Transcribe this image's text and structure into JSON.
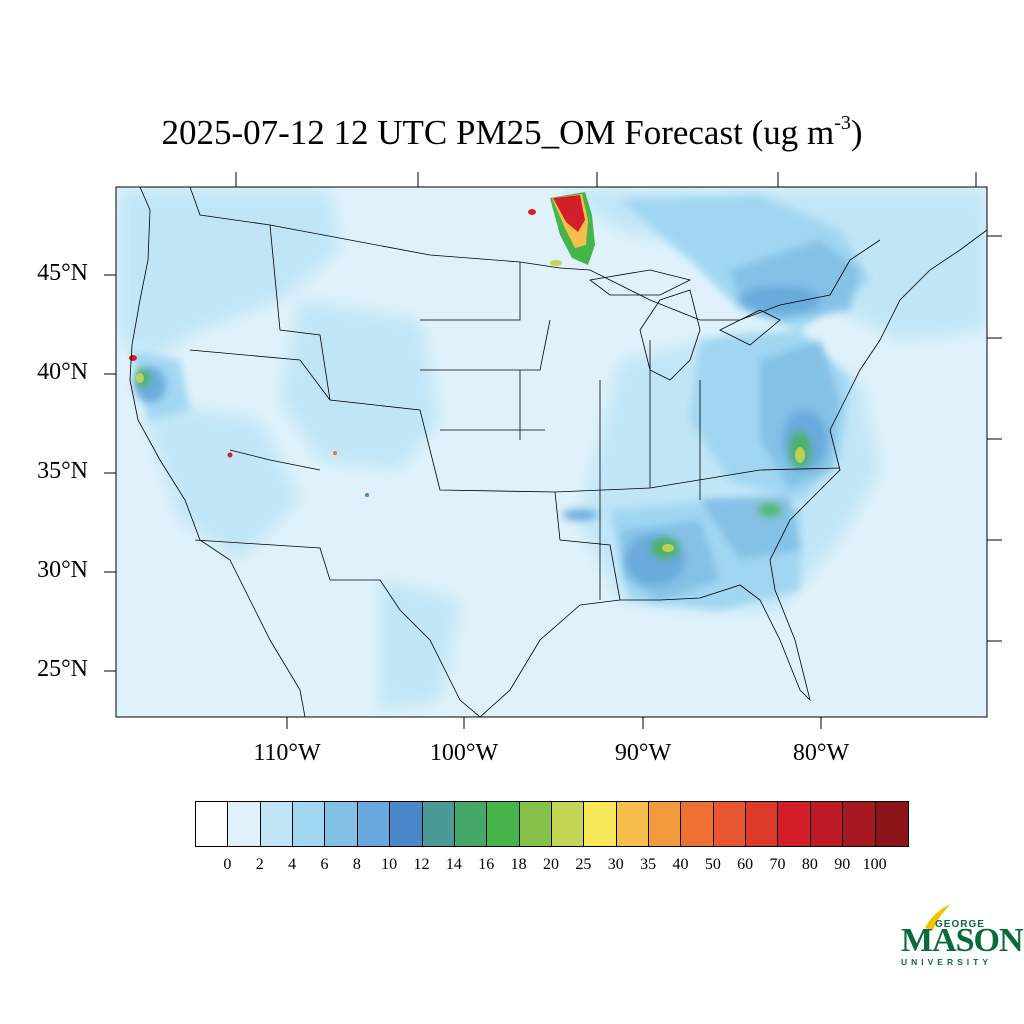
{
  "title": {
    "main": "2025-07-12 12 UTC PM25_OM Forecast (ug m",
    "superscript": "-3",
    "close": ")"
  },
  "axes": {
    "latitude_labels": [
      "45°N",
      "40°N",
      "35°N",
      "30°N",
      "25°N"
    ],
    "longitude_labels": [
      "110°W",
      "100°W",
      "90°W",
      "80°W"
    ]
  },
  "colorbar": {
    "colors": [
      "#ffffff",
      "#dff2fb",
      "#bfe5f7",
      "#9fd6f2",
      "#82bfe5",
      "#68a8dc",
      "#4a87c8",
      "#4a9a98",
      "#46a868",
      "#45b54a",
      "#86c24a",
      "#c4d455",
      "#f6e658",
      "#f6be4a",
      "#f29a3c",
      "#ef7030",
      "#e8552e",
      "#de3a2a",
      "#d21f2a",
      "#bc1a24",
      "#a61920",
      "#8c1418"
    ],
    "tick_labels": [
      "0",
      "2",
      "4",
      "6",
      "8",
      "10",
      "12",
      "14",
      "16",
      "18",
      "20",
      "25",
      "30",
      "35",
      "40",
      "50",
      "60",
      "70",
      "80",
      "90",
      "100"
    ]
  },
  "logo": {
    "line1": "GEORGE",
    "line2": "MASON",
    "line3": "UNIVERSITY",
    "color": "#0a6b3a",
    "accent": "#f2c200"
  }
}
